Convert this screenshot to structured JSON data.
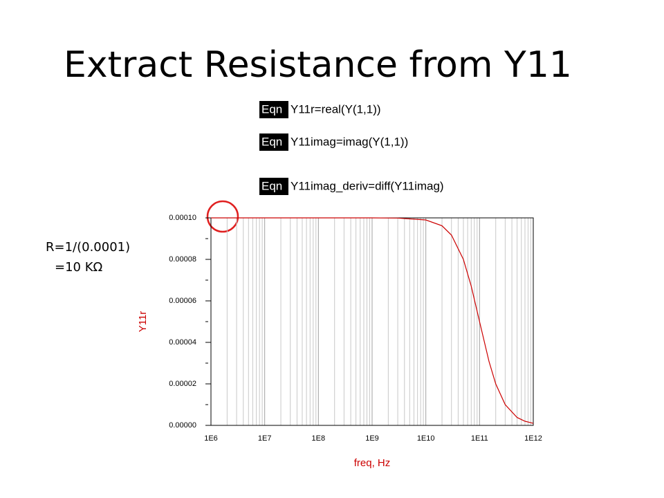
{
  "slide": {
    "title": "Extract Resistance from Y11",
    "equations": [
      {
        "tag": "Eqn",
        "text": "Y11r=real(Y(1,1))"
      },
      {
        "tag": "Eqn",
        "text": "Y11imag=imag(Y(1,1))"
      },
      {
        "tag": "Eqn",
        "text": "Y11imag_deriv=diff(Y11imag)"
      }
    ],
    "annotation": [
      "R=1/(0.0001)",
      "=10 KΩ"
    ]
  },
  "chart_data": {
    "type": "line",
    "xlabel": "freq, Hz",
    "ylabel": "Y11r",
    "color": "#cc0000",
    "xscale": "log",
    "grid": true,
    "x": [
      1000000,
      10000000,
      100000000,
      1000000000,
      3000000000,
      10000000000,
      20000000000,
      30000000000,
      50000000000,
      70000000000,
      100000000000,
      150000000000,
      200000000000,
      300000000000,
      500000000000,
      700000000000,
      1000000000000
    ],
    "values": [
      0.0001,
      0.0001,
      0.0001,
      0.0001,
      9.99e-05,
      9.9e-05,
      9.62e-05,
      9.17e-05,
      8e-05,
      6.71e-05,
      5e-05,
      3.08e-05,
      2e-05,
      1e-05,
      3.8e-06,
      2e-06,
      9.9e-07
    ],
    "xlim": [
      1000000,
      1000000000000
    ],
    "xticks": [
      {
        "value": 1000000,
        "label": "1E6"
      },
      {
        "value": 10000000,
        "label": "1E7"
      },
      {
        "value": 100000000,
        "label": "1E8"
      },
      {
        "value": 1000000000,
        "label": "1E9"
      },
      {
        "value": 10000000000,
        "label": "1E10"
      },
      {
        "value": 100000000000,
        "label": "1E11"
      },
      {
        "value": 1000000000000,
        "label": "1E12"
      }
    ],
    "x_minor_ticks": [
      2000000,
      3000000,
      4000000,
      5000000,
      6000000,
      7000000,
      8000000,
      9000000,
      20000000,
      30000000,
      40000000,
      50000000,
      60000000,
      70000000,
      80000000,
      90000000,
      200000000,
      300000000,
      400000000,
      500000000,
      600000000,
      700000000,
      800000000,
      900000000,
      2000000000,
      3000000000,
      4000000000,
      5000000000,
      6000000000,
      7000000000,
      8000000000,
      9000000000,
      20000000000,
      30000000000,
      40000000000,
      50000000000,
      60000000000,
      70000000000,
      80000000000,
      90000000000,
      200000000000,
      300000000000,
      400000000000,
      500000000000,
      600000000000,
      700000000000,
      800000000000,
      900000000000
    ],
    "ylim": [
      0,
      0.0001
    ],
    "yticks": [
      {
        "value": 0,
        "label": "0.00000"
      },
      {
        "value": 2e-05,
        "label": "0.00002"
      },
      {
        "value": 4e-05,
        "label": "0.00004"
      },
      {
        "value": 6e-05,
        "label": "0.00006"
      },
      {
        "value": 8e-05,
        "label": "0.00008"
      },
      {
        "value": 0.0001,
        "label": "0.00010"
      }
    ],
    "y_minor_ticks": [
      1e-05,
      3e-05,
      5e-05,
      7e-05,
      9e-05
    ]
  }
}
